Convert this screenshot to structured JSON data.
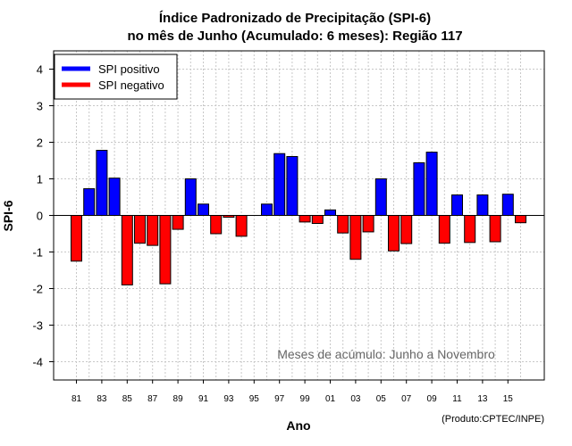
{
  "chart_data": {
    "type": "bar",
    "title": "Índice Padronizado de Precipitação (SPI-6)",
    "subtitle": "no mês de Junho (Acumulado: 6 meses): Região 117",
    "xlabel": "Ano",
    "ylabel": "SPI-6",
    "ylim": [
      -4.5,
      4.5
    ],
    "yticks": [
      -4,
      -3,
      -2,
      -1,
      0,
      1,
      2,
      3,
      4
    ],
    "xtick_labels": [
      "81",
      "83",
      "85",
      "87",
      "89",
      "91",
      "93",
      "95",
      "97",
      "99",
      "01",
      "03",
      "05",
      "07",
      "09",
      "11",
      "13",
      "15"
    ],
    "categories": [
      "81",
      "82",
      "83",
      "84",
      "85",
      "86",
      "87",
      "88",
      "89",
      "90",
      "91",
      "92",
      "93",
      "94",
      "95",
      "96",
      "97",
      "98",
      "99",
      "00",
      "01",
      "02",
      "03",
      "04",
      "05",
      "06",
      "07",
      "08",
      "09",
      "10",
      "11",
      "12",
      "13",
      "14",
      "15",
      "16"
    ],
    "values": [
      -1.25,
      0.73,
      1.78,
      1.02,
      -1.9,
      -0.76,
      -0.82,
      -1.87,
      -0.38,
      1.0,
      0.31,
      -0.5,
      -0.05,
      -0.57,
      0.0,
      0.31,
      1.69,
      1.61,
      -0.18,
      -0.22,
      0.15,
      -0.48,
      -1.2,
      -0.45,
      1.0,
      -0.97,
      -0.77,
      1.44,
      1.73,
      -0.76,
      0.56,
      -0.74,
      0.56,
      -0.72,
      0.58,
      -0.2
    ],
    "grid": true,
    "legend_position": "top-left",
    "series": [
      {
        "name": "SPI positivo",
        "color": "#0000ff"
      },
      {
        "name": "SPI negativo",
        "color": "#ff0000"
      }
    ],
    "annotation": "Meses de acúmulo: Junho a Novembro",
    "credit": "(Produto:CPTEC/INPE)"
  }
}
